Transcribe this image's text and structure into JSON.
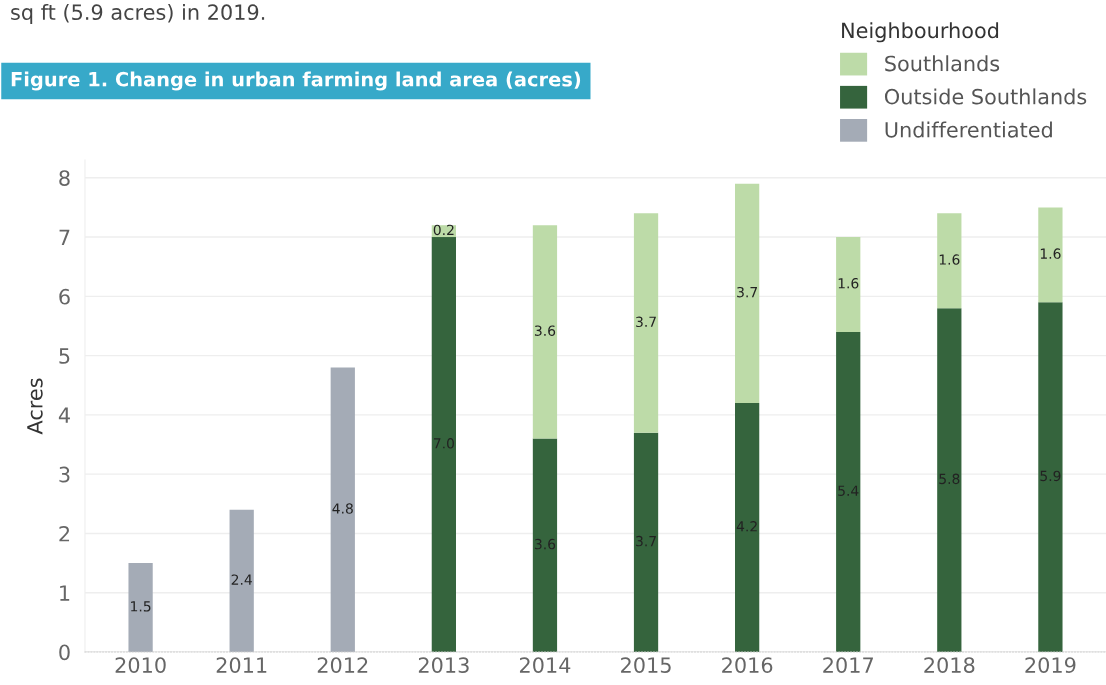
{
  "chart_data": {
    "type": "bar",
    "stacked": true,
    "title": "Figure 1. Change in urban farming land area (acres)",
    "ylabel": "Acres",
    "legend_title": "Neighbourhood",
    "annotations": [
      "sq ft (5.9 acres) in 2019."
    ],
    "categories": [
      "2010",
      "2011",
      "2012",
      "2013",
      "2014",
      "2015",
      "2016",
      "2017",
      "2018",
      "2019"
    ],
    "series": [
      {
        "name": "Undifferentiated",
        "color": "#a4abb6",
        "values": [
          1.5,
          2.4,
          4.8,
          null,
          null,
          null,
          null,
          null,
          null,
          null
        ],
        "value_labels": [
          "1.5",
          "2.4",
          "4.8",
          null,
          null,
          null,
          null,
          null,
          null,
          null
        ]
      },
      {
        "name": "Outside Southlands",
        "color": "#35643d",
        "values": [
          null,
          null,
          null,
          7.0,
          3.6,
          3.7,
          4.2,
          5.4,
          5.8,
          5.9
        ],
        "value_labels": [
          null,
          null,
          null,
          "7.0",
          "3.6",
          "3.7",
          "4.2",
          "5.4",
          "5.8",
          "5.9"
        ]
      },
      {
        "name": "Southlands",
        "color": "#bddba8",
        "values": [
          null,
          null,
          null,
          0.2,
          3.6,
          3.7,
          3.7,
          1.6,
          1.6,
          1.6
        ],
        "value_labels": [
          null,
          null,
          null,
          "0.2",
          "3.6",
          "3.7",
          "3.7",
          "1.6",
          "1.6",
          "1.6"
        ]
      }
    ],
    "ylim": [
      0,
      8.3
    ],
    "yticks": [
      0,
      1,
      2,
      3,
      4,
      5,
      6,
      7,
      8
    ],
    "grid": "y",
    "legend": "top right"
  }
}
